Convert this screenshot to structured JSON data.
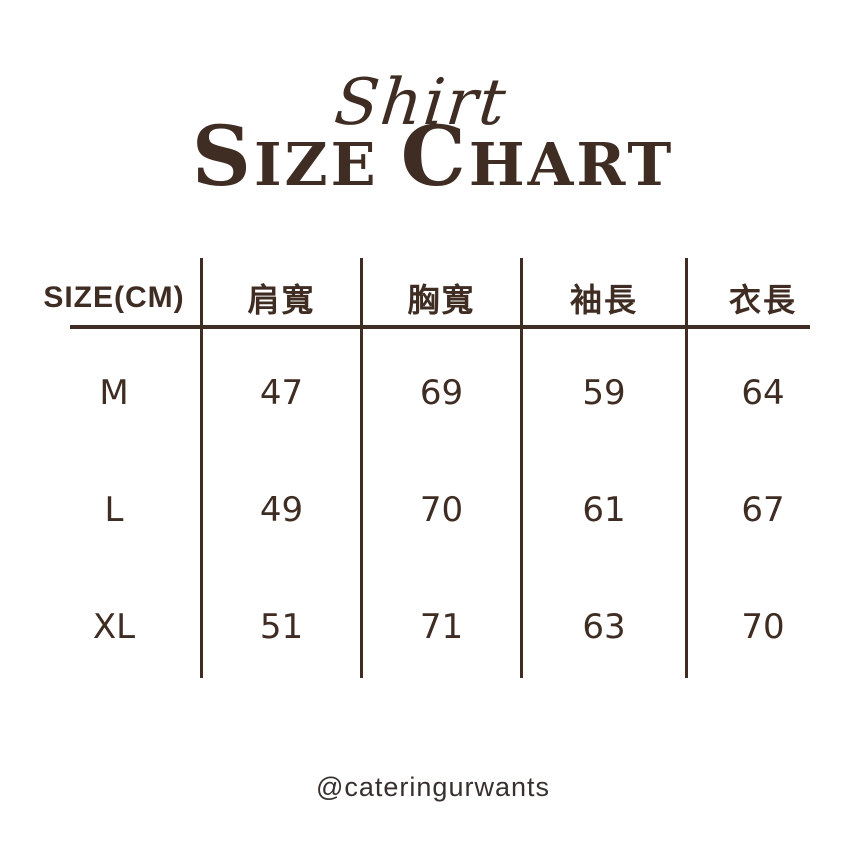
{
  "title": {
    "script": "Shirt",
    "main": [
      {
        "initial": "S",
        "rest": "IZE"
      },
      {
        "initial": "C",
        "rest": "HART"
      }
    ]
  },
  "table": {
    "headers": [
      "SIZE(CM)",
      "肩寬",
      "胸寬",
      "袖長",
      "衣長"
    ],
    "rows": [
      {
        "size": "M",
        "values": [
          47,
          69,
          59,
          64
        ]
      },
      {
        "size": "L",
        "values": [
          49,
          70,
          61,
          67
        ]
      },
      {
        "size": "XL",
        "values": [
          51,
          71,
          63,
          70
        ]
      }
    ]
  },
  "footer": {
    "handle": "@cateringurwants"
  },
  "colors": {
    "text_brown": "#3F2D24",
    "footer_text": "#37302E",
    "background": "#FFFFFF"
  },
  "chart_data": {
    "type": "table",
    "title": "Shirt Size Chart",
    "unit": "CM",
    "columns": [
      "SIZE(CM)",
      "肩寬",
      "胸寬",
      "袖長",
      "衣長"
    ],
    "rows": [
      [
        "M",
        47,
        69,
        59,
        64
      ],
      [
        "L",
        49,
        70,
        61,
        67
      ],
      [
        "XL",
        51,
        71,
        63,
        70
      ]
    ]
  }
}
